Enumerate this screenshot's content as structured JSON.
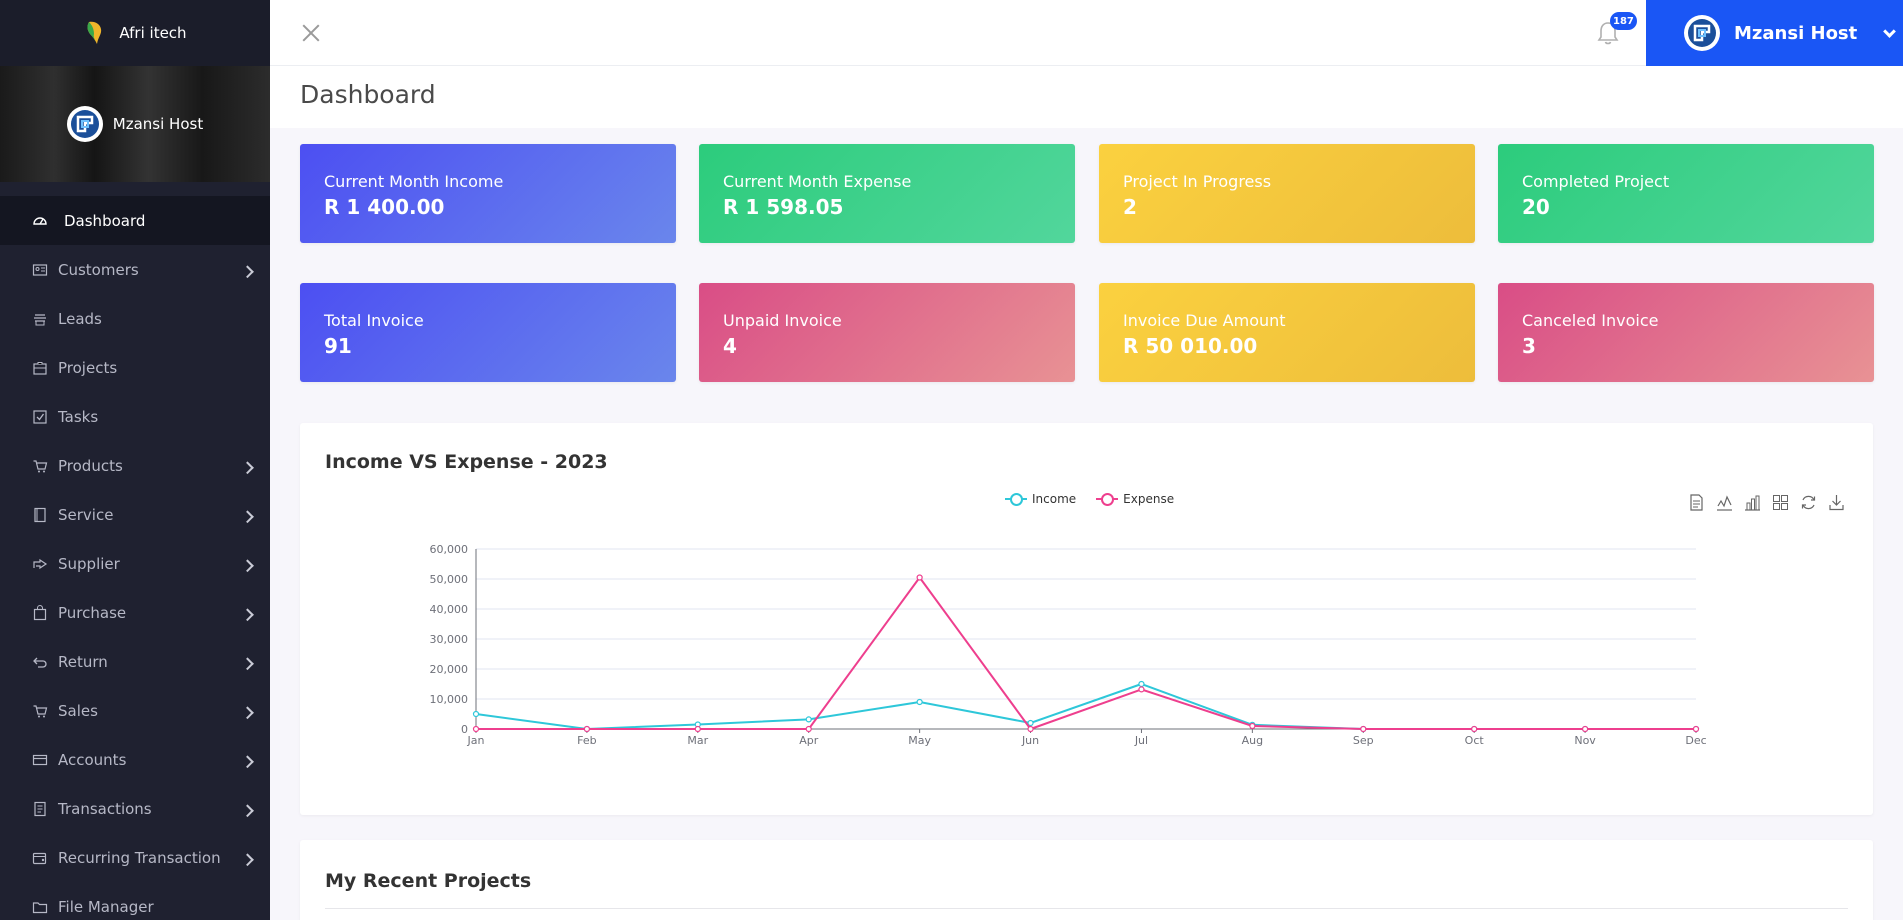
{
  "brand": {
    "name": "Afri itech"
  },
  "profile": {
    "name": "Mzansi Host"
  },
  "sidebar": {
    "items": [
      {
        "label": "Dashboard",
        "icon": "dashboard-icon",
        "active": true,
        "has_children": false
      },
      {
        "label": "Customers",
        "icon": "customers-icon",
        "active": false,
        "has_children": true
      },
      {
        "label": "Leads",
        "icon": "leads-icon",
        "active": false,
        "has_children": false
      },
      {
        "label": "Projects",
        "icon": "projects-icon",
        "active": false,
        "has_children": false
      },
      {
        "label": "Tasks",
        "icon": "tasks-icon",
        "active": false,
        "has_children": false
      },
      {
        "label": "Products",
        "icon": "products-icon",
        "active": false,
        "has_children": true
      },
      {
        "label": "Service",
        "icon": "service-icon",
        "active": false,
        "has_children": true
      },
      {
        "label": "Supplier",
        "icon": "supplier-icon",
        "active": false,
        "has_children": true
      },
      {
        "label": "Purchase",
        "icon": "purchase-icon",
        "active": false,
        "has_children": true
      },
      {
        "label": "Return",
        "icon": "return-icon",
        "active": false,
        "has_children": true
      },
      {
        "label": "Sales",
        "icon": "sales-icon",
        "active": false,
        "has_children": true
      },
      {
        "label": "Accounts",
        "icon": "accounts-icon",
        "active": false,
        "has_children": true
      },
      {
        "label": "Transactions",
        "icon": "transactions-icon",
        "active": false,
        "has_children": true
      },
      {
        "label": "Recurring Transaction",
        "icon": "recurring-icon",
        "active": false,
        "has_children": true
      },
      {
        "label": "File Manager",
        "icon": "file-manager-icon",
        "active": false,
        "has_children": false
      }
    ]
  },
  "topbar": {
    "notification_count": "187",
    "user_name": "Mzansi Host"
  },
  "page": {
    "title": "Dashboard"
  },
  "cards": [
    {
      "label": "Current Month Income",
      "value": "R 1 400.00",
      "color": "blue"
    },
    {
      "label": "Current Month Expense",
      "value": "R 1 598.05",
      "color": "green"
    },
    {
      "label": "Project In Progress",
      "value": "2",
      "color": "yellow"
    },
    {
      "label": "Completed Project",
      "value": "20",
      "color": "green"
    },
    {
      "label": "Total Invoice",
      "value": "91",
      "color": "blue"
    },
    {
      "label": "Unpaid Invoice",
      "value": "4",
      "color": "pink"
    },
    {
      "label": "Invoice Due Amount",
      "value": "R 50 010.00",
      "color": "yellow"
    },
    {
      "label": "Canceled Invoice",
      "value": "3",
      "color": "pink"
    }
  ],
  "chart_panel": {
    "title": "Income VS Expense - 2023"
  },
  "chart_data": {
    "type": "line",
    "title": "Income VS Expense - 2023",
    "categories": [
      "Jan",
      "Feb",
      "Mar",
      "Apr",
      "May",
      "Jun",
      "Jul",
      "Aug",
      "Sep",
      "Oct",
      "Nov",
      "Dec"
    ],
    "series": [
      {
        "name": "Income",
        "color": "#2ec7d9",
        "values": [
          5000,
          0,
          1500,
          3200,
          9000,
          2000,
          15000,
          1400,
          0,
          0,
          0,
          0
        ]
      },
      {
        "name": "Expense",
        "color": "#ee3f8e",
        "values": [
          0,
          0,
          0,
          0,
          50500,
          0,
          13200,
          1000,
          0,
          0,
          0,
          0
        ]
      }
    ],
    "ylim": [
      0,
      60000
    ],
    "yticks": [
      "0",
      "10,000",
      "20,000",
      "30,000",
      "40,000",
      "50,000",
      "60,000"
    ],
    "grid": true,
    "legend_position": "top-center"
  },
  "projects_panel": {
    "title": "My Recent Projects"
  }
}
